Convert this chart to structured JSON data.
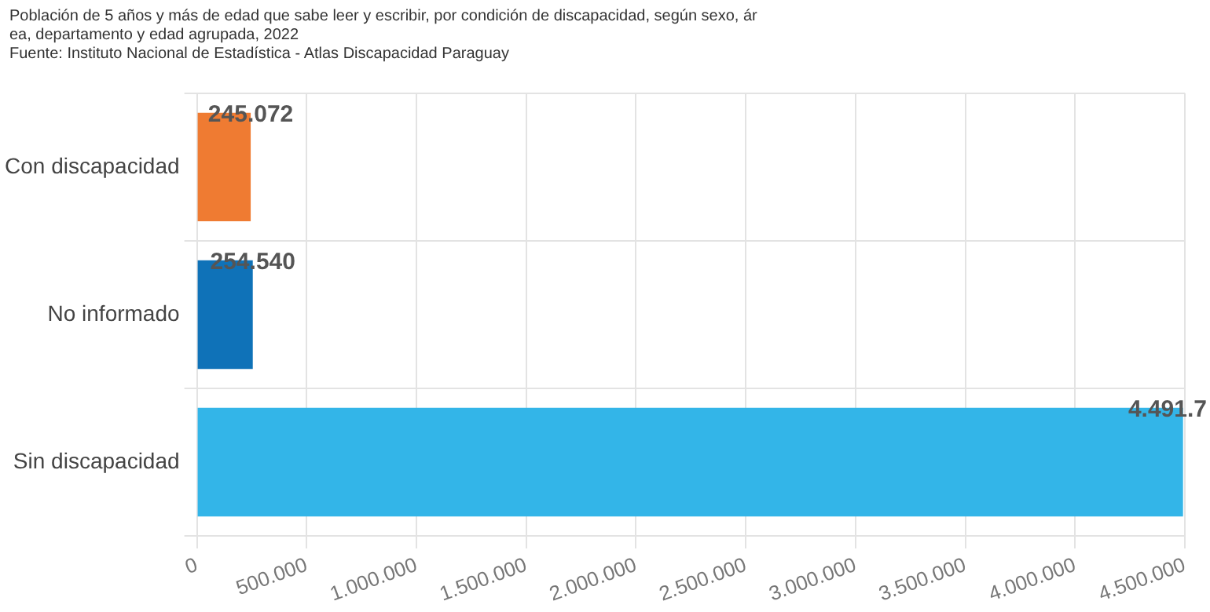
{
  "chart_data": {
    "type": "bar",
    "orientation": "horizontal",
    "title": "Población de 5 años y más de edad que sabe leer y escribir, por condición de discapacidad, según sexo, área, departamento y edad agrupada, 2022",
    "annotations": [
      "Fuente: Instituto Nacional de Estadística - Atlas Discapacidad Paraguay"
    ],
    "categories": [
      "Con discapacidad",
      "No informado",
      "Sin discapacidad"
    ],
    "values": [
      245072,
      254540,
      4491700
    ],
    "colors": [
      "#ef7b32",
      "#0f72b8",
      "#33b5e8"
    ],
    "value_labels": [
      "245.072",
      "254.540",
      "4.491.7"
    ],
    "xlim": [
      0,
      4500000
    ],
    "xticks": [
      0,
      {
        "value": 500000,
        "label": "500.000"
      },
      {
        "value": 1000000,
        "label": "1.000.000"
      },
      {
        "value": 1500000,
        "label": "1.500.000"
      },
      {
        "value": 2000000,
        "label": "2.000.000"
      },
      {
        "value": 2500000,
        "label": "2.500.000"
      },
      {
        "value": 3000000,
        "label": "3.000.000"
      },
      {
        "value": 3500000,
        "label": "3.500.000"
      },
      {
        "value": 4000000,
        "label": "4.000.000"
      },
      {
        "value": 4500000,
        "label": "4.500.000"
      }
    ],
    "grid": true,
    "legend": false
  }
}
